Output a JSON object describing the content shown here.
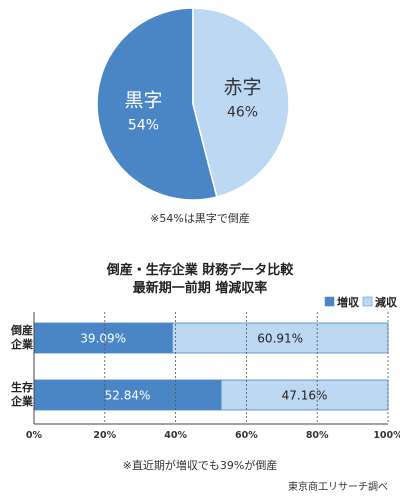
{
  "colors": {
    "dark": "#4a86c5",
    "light": "#bcd8f3",
    "grid": "#555555",
    "axis": "#444444"
  },
  "chart_data": [
    {
      "type": "pie",
      "slices": [
        {
          "name": "黒字",
          "value": 54,
          "value_label": "54%",
          "color": "#4a86c5",
          "text_color": "#ffffff"
        },
        {
          "name": "赤字",
          "value": 46,
          "value_label": "46%",
          "color": "#bcd8f3",
          "text_color": "#333333"
        }
      ],
      "note": "※54%は黒字で倒産"
    },
    {
      "type": "bar",
      "orientation": "horizontal-stacked",
      "title": "倒産・生存企業 財務データ比較",
      "subtitle": "最新期一前期 増減収率",
      "categories": [
        {
          "label_lines": [
            "倒産",
            "企業"
          ]
        },
        {
          "label_lines": [
            "生存",
            "企業"
          ]
        }
      ],
      "series": [
        {
          "name": "増収",
          "color": "#4a86c5",
          "values": [
            39.09,
            52.84
          ],
          "value_labels": [
            "39.09%",
            "52.84%"
          ]
        },
        {
          "name": "減収",
          "color": "#bcd8f3",
          "values": [
            60.91,
            47.16
          ],
          "value_labels": [
            "60.91%",
            "47.16%"
          ]
        }
      ],
      "xlim": [
        0,
        100
      ],
      "x_ticks": [
        0,
        20,
        40,
        60,
        80,
        100
      ],
      "x_tick_labels": [
        "0%",
        "20%",
        "40%",
        "60%",
        "80%",
        "100%"
      ],
      "legend_position": "top-right",
      "note": "※直近期が増収でも39%が倒産"
    }
  ],
  "source": "東京商工リサーチ調べ"
}
